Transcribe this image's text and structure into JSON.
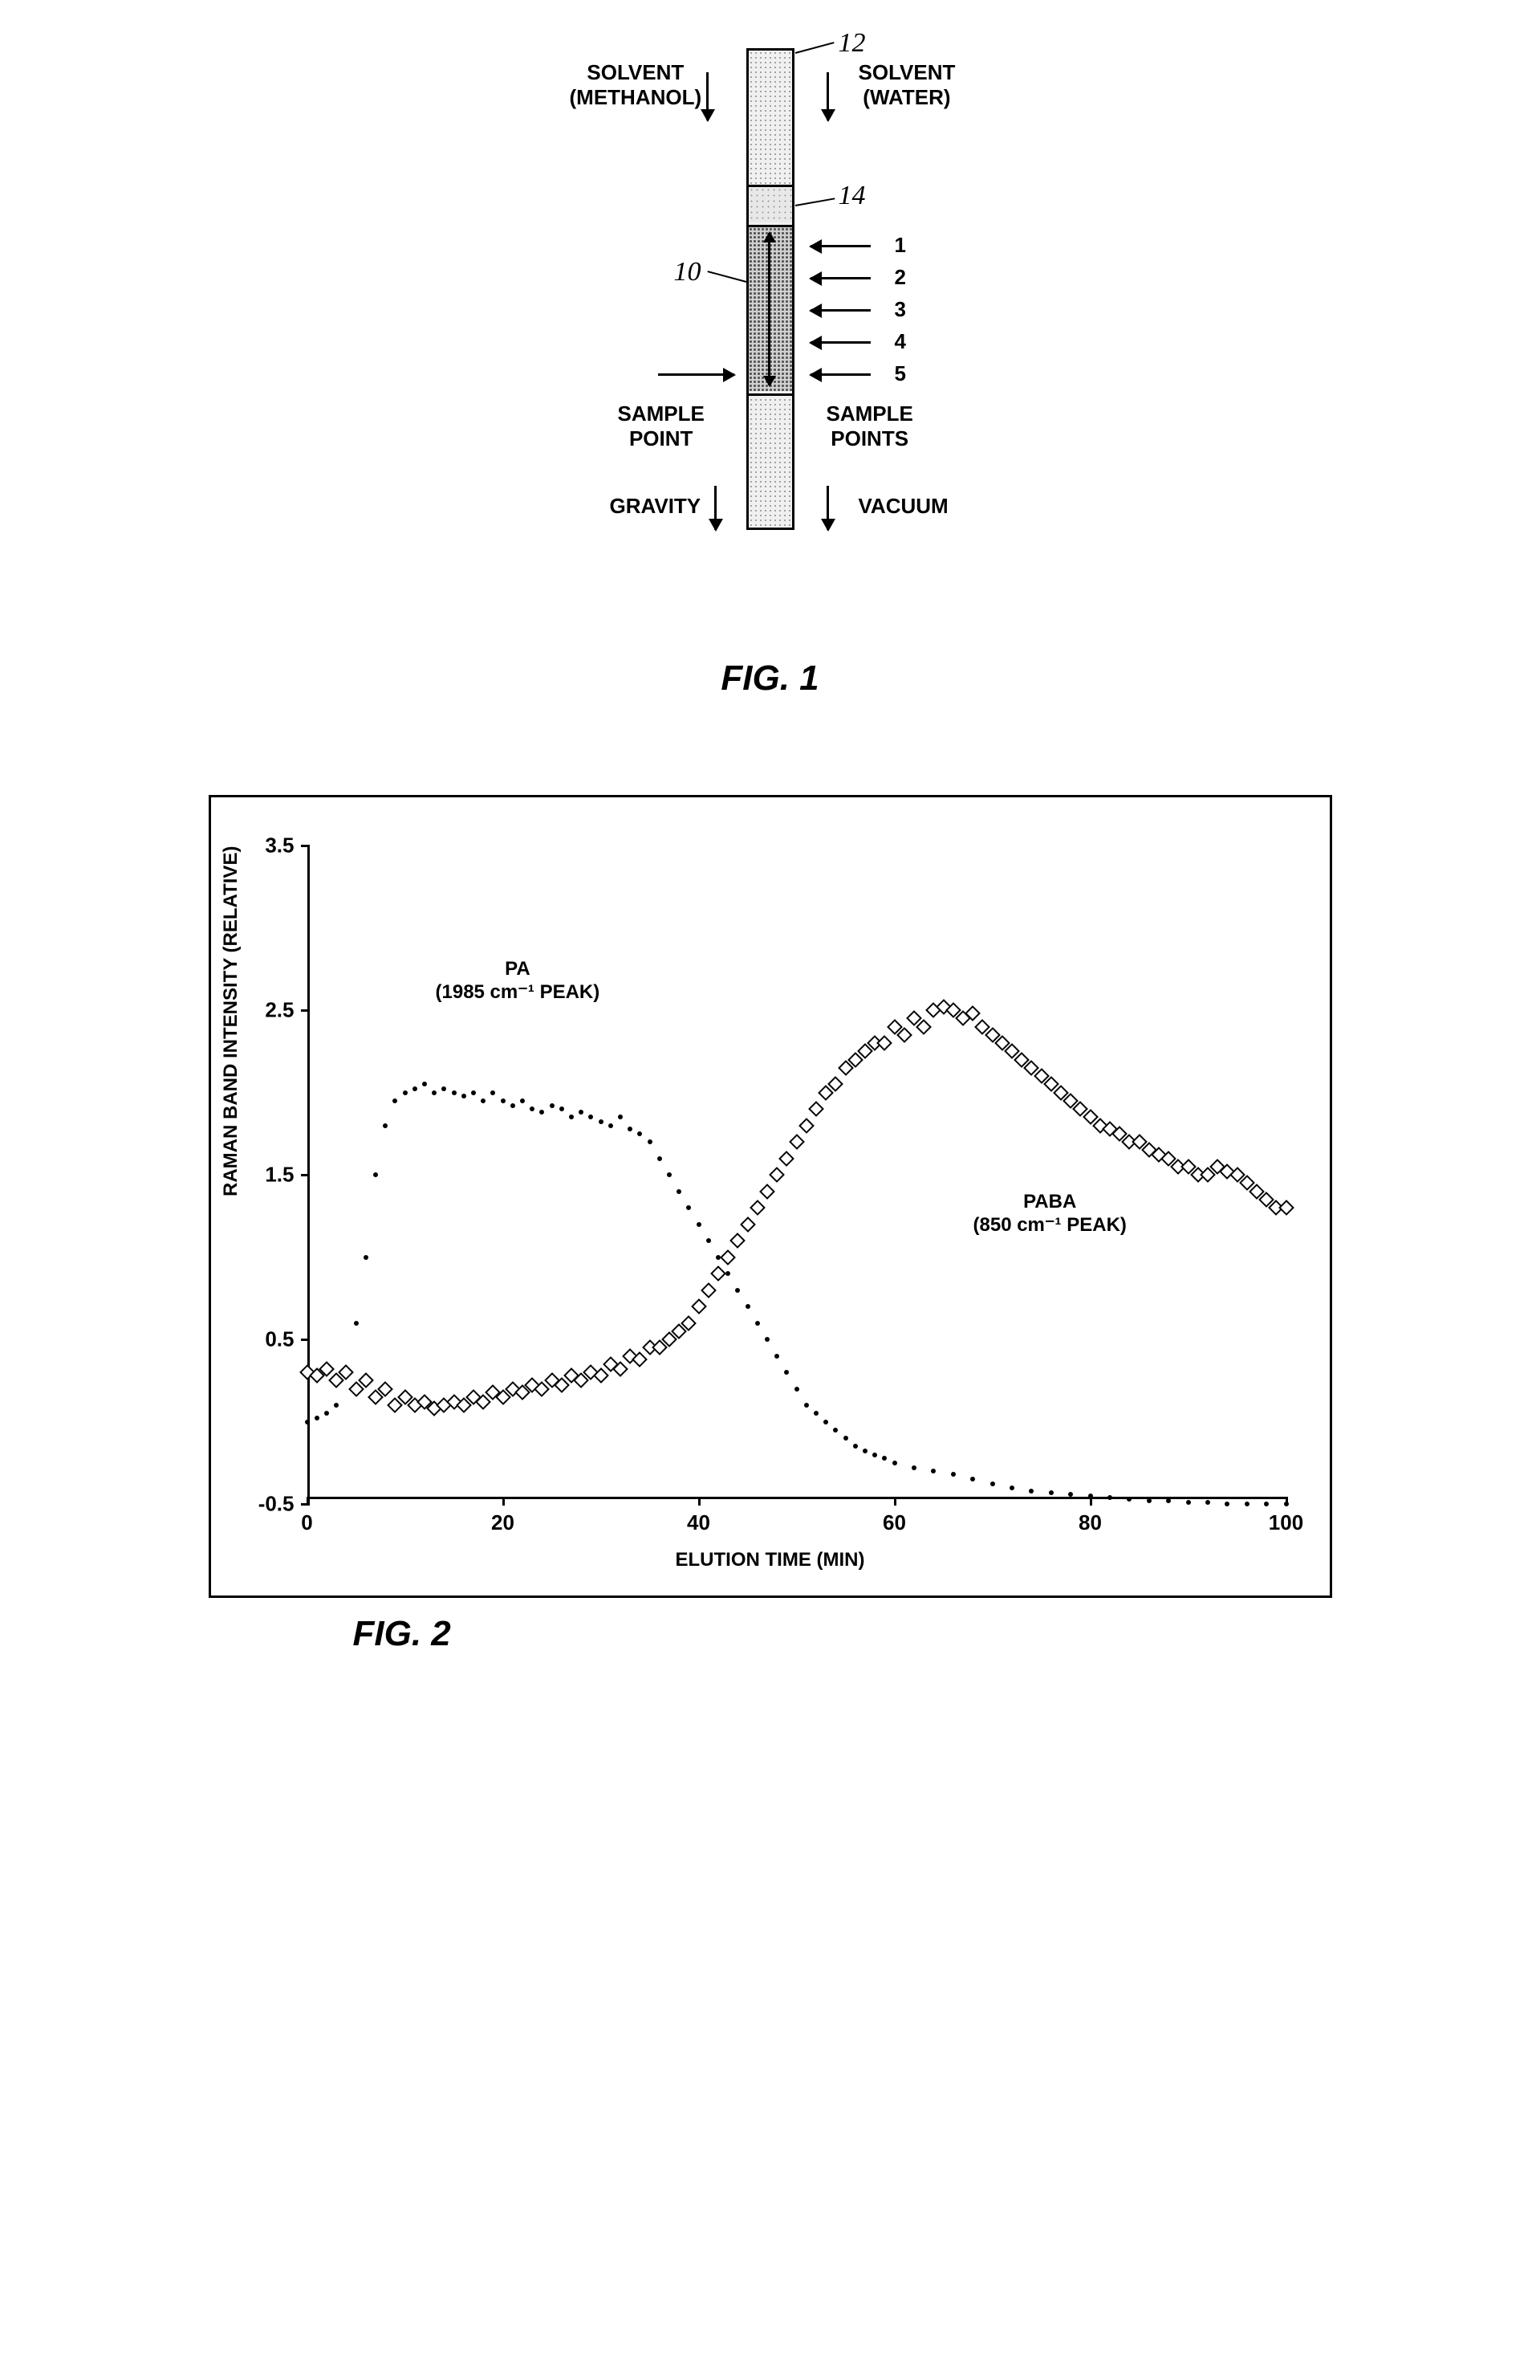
{
  "fig1": {
    "caption": "FIG. 1",
    "solvent_left_1": "SOLVENT",
    "solvent_left_2": "(METHANOL)",
    "solvent_right_1": "SOLVENT",
    "solvent_right_2": "(WATER)",
    "sample_point": "SAMPLE",
    "sample_point2": "POINT",
    "sample_points_r1": "SAMPLE",
    "sample_points_r2": "POINTS",
    "gravity": "GRAVITY",
    "vacuum": "VACUUM",
    "ref_10": "10",
    "ref_12": "12",
    "ref_14": "14",
    "sp1": "1",
    "sp2": "2",
    "sp3": "3",
    "sp4": "4",
    "sp5": "5"
  },
  "fig2": {
    "caption": "FIG. 2",
    "y_axis_title": "RAMAN BAND INTENSITY (RELATIVE)",
    "x_axis_title": "ELUTION TIME (MIN)",
    "ylim": [
      -0.5,
      3.5
    ],
    "xlim": [
      0,
      100
    ],
    "y_ticks": [
      -0.5,
      0.5,
      1.5,
      2.5,
      3.5
    ],
    "x_ticks": [
      0,
      20,
      40,
      60,
      80,
      100
    ],
    "series_pa_label1": "PA",
    "series_pa_label2": "(1985 cm⁻¹ PEAK)",
    "series_paba_label1": "PABA",
    "series_paba_label2": "(850 cm⁻¹ PEAK)",
    "pa_data": [
      [
        0,
        0.0
      ],
      [
        1,
        0.02
      ],
      [
        2,
        0.05
      ],
      [
        3,
        0.1
      ],
      [
        4,
        0.3
      ],
      [
        5,
        0.6
      ],
      [
        6,
        1.0
      ],
      [
        7,
        1.5
      ],
      [
        8,
        1.8
      ],
      [
        9,
        1.95
      ],
      [
        10,
        2.0
      ],
      [
        11,
        2.02
      ],
      [
        12,
        2.05
      ],
      [
        13,
        2.0
      ],
      [
        14,
        2.02
      ],
      [
        15,
        2.0
      ],
      [
        16,
        1.98
      ],
      [
        17,
        2.0
      ],
      [
        18,
        1.95
      ],
      [
        19,
        2.0
      ],
      [
        20,
        1.95
      ],
      [
        21,
        1.92
      ],
      [
        22,
        1.95
      ],
      [
        23,
        1.9
      ],
      [
        24,
        1.88
      ],
      [
        25,
        1.92
      ],
      [
        26,
        1.9
      ],
      [
        27,
        1.85
      ],
      [
        28,
        1.88
      ],
      [
        29,
        1.85
      ],
      [
        30,
        1.82
      ],
      [
        31,
        1.8
      ],
      [
        32,
        1.85
      ],
      [
        33,
        1.78
      ],
      [
        34,
        1.75
      ],
      [
        35,
        1.7
      ],
      [
        36,
        1.6
      ],
      [
        37,
        1.5
      ],
      [
        38,
        1.4
      ],
      [
        39,
        1.3
      ],
      [
        40,
        1.2
      ],
      [
        41,
        1.1
      ],
      [
        42,
        1.0
      ],
      [
        43,
        0.9
      ],
      [
        44,
        0.8
      ],
      [
        45,
        0.7
      ],
      [
        46,
        0.6
      ],
      [
        47,
        0.5
      ],
      [
        48,
        0.4
      ],
      [
        49,
        0.3
      ],
      [
        50,
        0.2
      ],
      [
        51,
        0.1
      ],
      [
        52,
        0.05
      ],
      [
        53,
        0.0
      ],
      [
        54,
        -0.05
      ],
      [
        55,
        -0.1
      ],
      [
        56,
        -0.15
      ],
      [
        57,
        -0.18
      ],
      [
        58,
        -0.2
      ],
      [
        59,
        -0.22
      ],
      [
        60,
        -0.25
      ],
      [
        62,
        -0.28
      ],
      [
        64,
        -0.3
      ],
      [
        66,
        -0.32
      ],
      [
        68,
        -0.35
      ],
      [
        70,
        -0.38
      ],
      [
        72,
        -0.4
      ],
      [
        74,
        -0.42
      ],
      [
        76,
        -0.43
      ],
      [
        78,
        -0.44
      ],
      [
        80,
        -0.45
      ],
      [
        82,
        -0.46
      ],
      [
        84,
        -0.47
      ],
      [
        86,
        -0.48
      ],
      [
        88,
        -0.48
      ],
      [
        90,
        -0.49
      ],
      [
        92,
        -0.49
      ],
      [
        94,
        -0.5
      ],
      [
        96,
        -0.5
      ],
      [
        98,
        -0.5
      ],
      [
        100,
        -0.5
      ]
    ],
    "paba_data": [
      [
        0,
        0.3
      ],
      [
        1,
        0.28
      ],
      [
        2,
        0.32
      ],
      [
        3,
        0.25
      ],
      [
        4,
        0.3
      ],
      [
        5,
        0.2
      ],
      [
        6,
        0.25
      ],
      [
        7,
        0.15
      ],
      [
        8,
        0.2
      ],
      [
        9,
        0.1
      ],
      [
        10,
        0.15
      ],
      [
        11,
        0.1
      ],
      [
        12,
        0.12
      ],
      [
        13,
        0.08
      ],
      [
        14,
        0.1
      ],
      [
        15,
        0.12
      ],
      [
        16,
        0.1
      ],
      [
        17,
        0.15
      ],
      [
        18,
        0.12
      ],
      [
        19,
        0.18
      ],
      [
        20,
        0.15
      ],
      [
        21,
        0.2
      ],
      [
        22,
        0.18
      ],
      [
        23,
        0.22
      ],
      [
        24,
        0.2
      ],
      [
        25,
        0.25
      ],
      [
        26,
        0.22
      ],
      [
        27,
        0.28
      ],
      [
        28,
        0.25
      ],
      [
        29,
        0.3
      ],
      [
        30,
        0.28
      ],
      [
        31,
        0.35
      ],
      [
        32,
        0.32
      ],
      [
        33,
        0.4
      ],
      [
        34,
        0.38
      ],
      [
        35,
        0.45
      ],
      [
        36,
        0.45
      ],
      [
        37,
        0.5
      ],
      [
        38,
        0.55
      ],
      [
        39,
        0.6
      ],
      [
        40,
        0.7
      ],
      [
        41,
        0.8
      ],
      [
        42,
        0.9
      ],
      [
        43,
        1.0
      ],
      [
        44,
        1.1
      ],
      [
        45,
        1.2
      ],
      [
        46,
        1.3
      ],
      [
        47,
        1.4
      ],
      [
        48,
        1.5
      ],
      [
        49,
        1.6
      ],
      [
        50,
        1.7
      ],
      [
        51,
        1.8
      ],
      [
        52,
        1.9
      ],
      [
        53,
        2.0
      ],
      [
        54,
        2.05
      ],
      [
        55,
        2.15
      ],
      [
        56,
        2.2
      ],
      [
        57,
        2.25
      ],
      [
        58,
        2.3
      ],
      [
        59,
        2.3
      ],
      [
        60,
        2.4
      ],
      [
        61,
        2.35
      ],
      [
        62,
        2.45
      ],
      [
        63,
        2.4
      ],
      [
        64,
        2.5
      ],
      [
        65,
        2.52
      ],
      [
        66,
        2.5
      ],
      [
        67,
        2.45
      ],
      [
        68,
        2.48
      ],
      [
        69,
        2.4
      ],
      [
        70,
        2.35
      ],
      [
        71,
        2.3
      ],
      [
        72,
        2.25
      ],
      [
        73,
        2.2
      ],
      [
        74,
        2.15
      ],
      [
        75,
        2.1
      ],
      [
        76,
        2.05
      ],
      [
        77,
        2.0
      ],
      [
        78,
        1.95
      ],
      [
        79,
        1.9
      ],
      [
        80,
        1.85
      ],
      [
        81,
        1.8
      ],
      [
        82,
        1.78
      ],
      [
        83,
        1.75
      ],
      [
        84,
        1.7
      ],
      [
        85,
        1.7
      ],
      [
        86,
        1.65
      ],
      [
        87,
        1.62
      ],
      [
        88,
        1.6
      ],
      [
        89,
        1.55
      ],
      [
        90,
        1.55
      ],
      [
        91,
        1.5
      ],
      [
        92,
        1.5
      ],
      [
        93,
        1.55
      ],
      [
        94,
        1.52
      ],
      [
        95,
        1.5
      ],
      [
        96,
        1.45
      ],
      [
        97,
        1.4
      ],
      [
        98,
        1.35
      ],
      [
        99,
        1.3
      ],
      [
        100,
        1.3
      ]
    ]
  }
}
